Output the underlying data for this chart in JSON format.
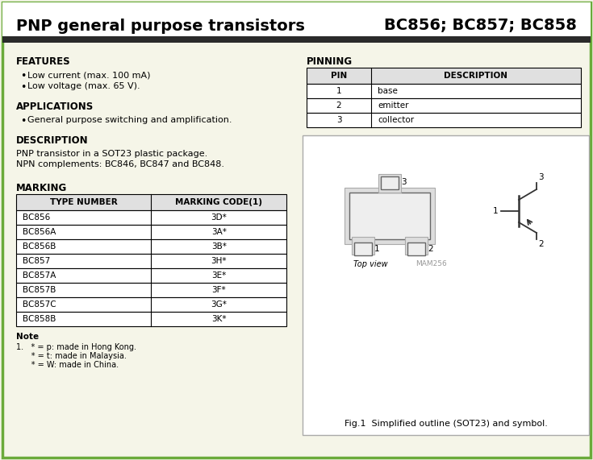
{
  "title_left": "PNP general purpose transistors",
  "title_right": "BC856; BC857; BC858",
  "bg_color": "#f5f5e8",
  "border_color": "#6aaa3a",
  "header_bar_color": "#2a2a2a",
  "features_header": "FEATURES",
  "features_bullets": [
    "Low current (max. 100 mA)",
    "Low voltage (max. 65 V)."
  ],
  "applications_header": "APPLICATIONS",
  "applications_bullets": [
    "General purpose switching and amplification."
  ],
  "description_header": "DESCRIPTION",
  "description_text": "PNP transistor in a SOT23 plastic package.\nNPN complements: BC846, BC847 and BC848.",
  "marking_header": "MARKING",
  "marking_col1_header": "TYPE NUMBER",
  "marking_col2_header": "MARKING CODE(1)",
  "marking_rows": [
    [
      "BC856",
      "3D*"
    ],
    [
      "BC856A",
      "3A*"
    ],
    [
      "BC856B",
      "3B*"
    ],
    [
      "BC857",
      "3H*"
    ],
    [
      "BC857A",
      "3E*"
    ],
    [
      "BC857B",
      "3F*"
    ],
    [
      "BC857C",
      "3G*"
    ],
    [
      "BC858B",
      "3K*"
    ]
  ],
  "note_header": "Note",
  "note_lines": [
    "1.   * = p: made in Hong Kong.",
    "      * = t: made in Malaysia.",
    "      * = W: made in China."
  ],
  "pinning_header": "PINNING",
  "pin_col1_header": "PIN",
  "pin_col2_header": "DESCRIPTION",
  "pin_rows": [
    [
      "1",
      "base"
    ],
    [
      "2",
      "emitter"
    ],
    [
      "3",
      "collector"
    ]
  ],
  "fig_caption": "Fig.1  Simplified outline (SOT23) and symbol."
}
